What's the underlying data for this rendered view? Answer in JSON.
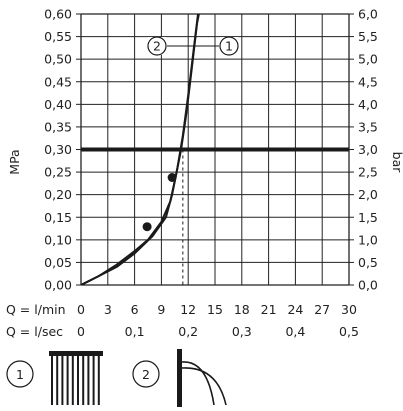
{
  "chart_data": {
    "type": "line",
    "y_left_label": "MPa",
    "y_right_label": "bar",
    "ylim": [
      0,
      0.6
    ],
    "y_left_ticks": [
      "0,00",
      "0,05",
      "0,10",
      "0,15",
      "0,20",
      "0,25",
      "0,30",
      "0,35",
      "0,40",
      "0,45",
      "0,50",
      "0,55",
      "0,60"
    ],
    "y_right_ticks": [
      "0,0",
      "0,5",
      "1,0",
      "1,5",
      "2,0",
      "2,5",
      "3,0",
      "3,5",
      "4,0",
      "4,5",
      "5,0",
      "5,5",
      "6,0"
    ],
    "xlim": [
      0,
      30
    ],
    "x_lmin_label": "Q = l/min",
    "x_lmin_ticks": [
      "0",
      "3",
      "6",
      "9",
      "12",
      "15",
      "18",
      "21",
      "24",
      "27",
      "30"
    ],
    "x_lsec_label": "Q = l/sec",
    "x_lsec_ticks": [
      {
        "value": 0,
        "label": "0"
      },
      {
        "value": 6,
        "label": "0,1"
      },
      {
        "value": 12,
        "label": "0,2"
      },
      {
        "value": 18,
        "label": "0,3"
      },
      {
        "value": 24,
        "label": "0,4"
      },
      {
        "value": 30,
        "label": "0,5"
      }
    ],
    "grid": true,
    "reference_line_y": 0.3,
    "reference_drop_x": 11.4,
    "series": [
      {
        "marker": "1",
        "points": [
          [
            0,
            0
          ],
          [
            2,
            0.02
          ],
          [
            4,
            0.045
          ],
          [
            6,
            0.075
          ],
          [
            7.5,
            0.1
          ],
          [
            9,
            0.14
          ],
          [
            10,
            0.185
          ],
          [
            10.6,
            0.24
          ],
          [
            11.2,
            0.3
          ],
          [
            11.8,
            0.38
          ],
          [
            12.4,
            0.48
          ],
          [
            13,
            0.58
          ],
          [
            13.2,
            0.6
          ]
        ],
        "marked_point": [
          7.4,
          0.129
        ]
      },
      {
        "marker": "2",
        "points": [
          [
            0,
            0
          ],
          [
            2,
            0.02
          ],
          [
            4,
            0.04
          ],
          [
            6,
            0.07
          ],
          [
            8,
            0.108
          ],
          [
            9.5,
            0.15
          ],
          [
            10.2,
            0.2
          ],
          [
            10.8,
            0.26
          ],
          [
            11.4,
            0.33
          ],
          [
            12,
            0.42
          ],
          [
            12.6,
            0.52
          ],
          [
            13.1,
            0.6
          ]
        ],
        "marked_point": [
          10.2,
          0.238
        ]
      }
    ],
    "curve_labels": [
      "2",
      "1"
    ],
    "product_icons": [
      {
        "number": "1",
        "icon": "shower-head-rain-icon"
      },
      {
        "number": "2",
        "icon": "shower-head-jet-icon"
      }
    ],
    "colors": {
      "line": "#1a1a1a",
      "grid": "#222222",
      "background": "#ffffff"
    }
  }
}
